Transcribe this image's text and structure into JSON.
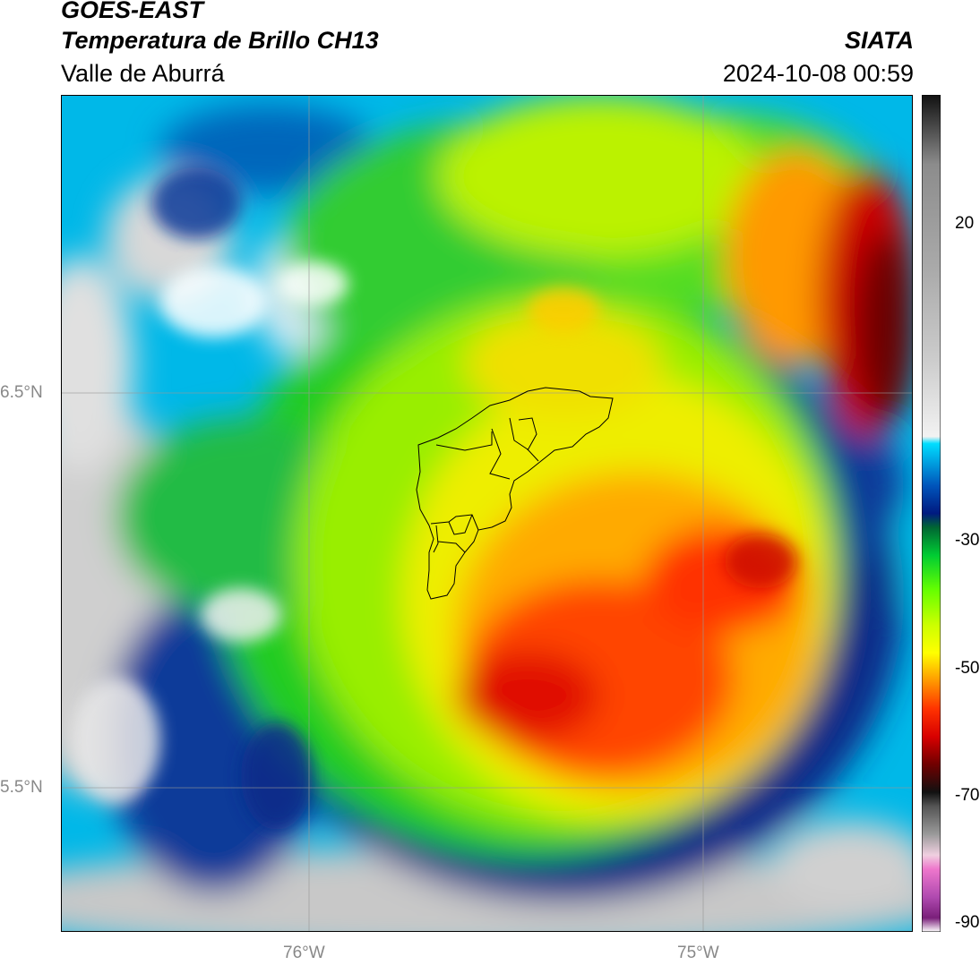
{
  "header": {
    "satellite": "GOES-EAST",
    "product": "Temperatura de Brillo CH13",
    "region": "Valle de Aburrá",
    "agency": "SIATA",
    "timestamp": "2024-10-08 00:59"
  },
  "map": {
    "lat_labels": [
      "6.5°N",
      "5.5°N"
    ],
    "lon_labels": [
      "76°W",
      "75°W"
    ],
    "grid": true,
    "boundary": "Valle de Aburrá municipalities outline",
    "variable": "brightness temperature (°C)"
  },
  "colorbar": {
    "ticks": [
      "20",
      "-30",
      "-50",
      "-70",
      "-90"
    ],
    "range": [
      -90,
      30
    ],
    "stops": [
      {
        "v": -90,
        "c": "#ffffff"
      },
      {
        "v": -88,
        "c": "#7a1f7a"
      },
      {
        "v": -85,
        "c": "#b04ab0"
      },
      {
        "v": -81,
        "c": "#ee77cc"
      },
      {
        "v": -79,
        "c": "#f0d0e0"
      },
      {
        "v": -76,
        "c": "#9a9a9a"
      },
      {
        "v": -72,
        "c": "#555555"
      },
      {
        "v": -70,
        "c": "#111111"
      },
      {
        "v": -66,
        "c": "#700000"
      },
      {
        "v": -62,
        "c": "#d80000"
      },
      {
        "v": -58,
        "c": "#ff3300"
      },
      {
        "v": -54,
        "c": "#ff9900"
      },
      {
        "v": -50,
        "c": "#ffff00"
      },
      {
        "v": -46,
        "c": "#ccff00"
      },
      {
        "v": -41,
        "c": "#66ff00"
      },
      {
        "v": -36,
        "c": "#00cc33"
      },
      {
        "v": -32,
        "c": "#006633"
      },
      {
        "v": -30,
        "c": "#001a80"
      },
      {
        "v": -26,
        "c": "#0055bb"
      },
      {
        "v": -23,
        "c": "#0099dd"
      },
      {
        "v": -20,
        "c": "#00ddff"
      },
      {
        "v": -19,
        "c": "#f2f2f2"
      },
      {
        "v": -8,
        "c": "#cccccc"
      },
      {
        "v": 5,
        "c": "#aaaaaa"
      },
      {
        "v": 20,
        "c": "#8c8c8c"
      },
      {
        "v": 30,
        "c": "#111111"
      }
    ]
  }
}
